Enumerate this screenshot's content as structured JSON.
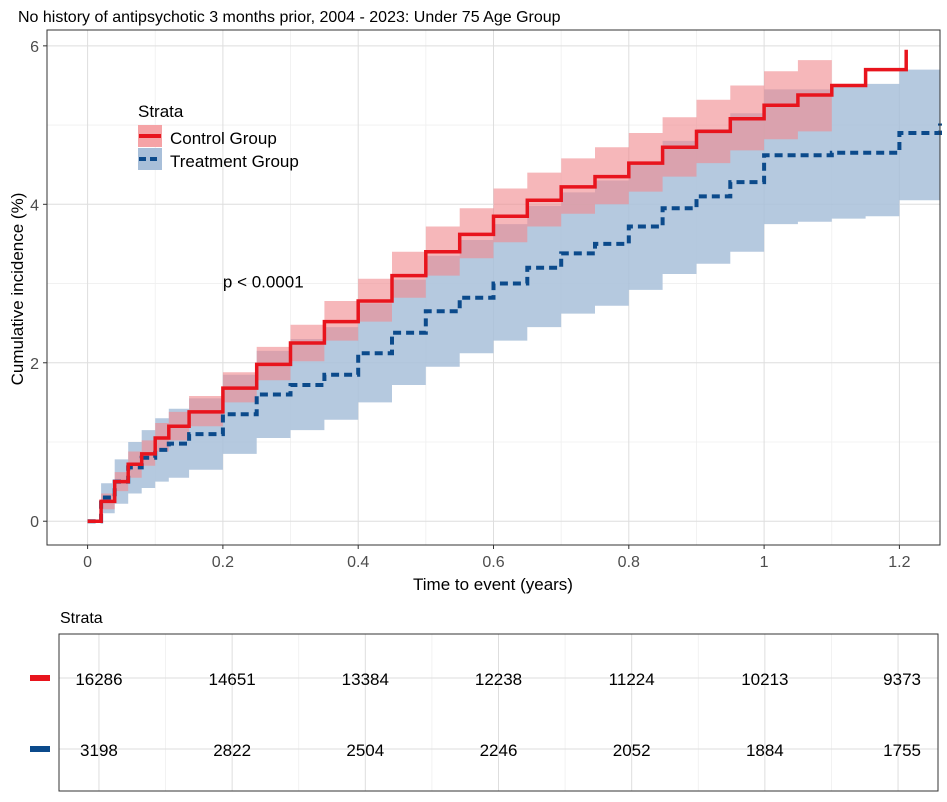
{
  "chart_data": [
    {
      "type": "line",
      "title": "No history of antipsychotic 3 months prior, 2004 - 2023: Under 75 Age Group",
      "xlabel": "Time to event (years)",
      "ylabel": "Cumulative incidence (%)",
      "xlim": [
        -0.06,
        1.26
      ],
      "ylim": [
        -0.3,
        6.2
      ],
      "x_ticks": [
        0,
        0.2,
        0.4,
        0.6,
        0.8,
        1,
        1.2
      ],
      "x_tick_labels": [
        "0",
        "0.2",
        "0.4",
        "0.6",
        "0.8",
        "1",
        "1.2"
      ],
      "y_ticks": [
        0,
        2,
        4,
        6
      ],
      "y_tick_labels": [
        "0",
        "2",
        "4",
        "6"
      ],
      "grid": true,
      "legend": {
        "title": "Strata",
        "placement": "top-left",
        "entries": [
          "Control Group",
          "Treatment Group"
        ]
      },
      "annotation": "p < 0.0001",
      "annotation_position": {
        "x": 0.2,
        "y": 2.95
      },
      "series": [
        {
          "name": "Control Group",
          "color": "#e8141d",
          "band_color": "#f08a8f",
          "line_style": "solid",
          "x": [
            0,
            0.02,
            0.04,
            0.06,
            0.08,
            0.1,
            0.12,
            0.15,
            0.2,
            0.25,
            0.3,
            0.35,
            0.4,
            0.45,
            0.5,
            0.55,
            0.6,
            0.65,
            0.7,
            0.75,
            0.8,
            0.85,
            0.9,
            0.95,
            1.0,
            1.05,
            1.1,
            1.15,
            1.21
          ],
          "y": [
            0,
            0.25,
            0.5,
            0.72,
            0.85,
            1.05,
            1.2,
            1.38,
            1.68,
            1.98,
            2.25,
            2.52,
            2.78,
            3.1,
            3.4,
            3.62,
            3.85,
            4.05,
            4.22,
            4.35,
            4.52,
            4.72,
            4.92,
            5.08,
            5.25,
            5.38,
            5.5,
            5.7,
            5.95
          ],
          "lower": [
            0,
            0.15,
            0.38,
            0.55,
            0.7,
            0.88,
            1.02,
            1.2,
            1.5,
            1.78,
            2.02,
            2.28,
            2.52,
            2.82,
            3.1,
            3.32,
            3.52,
            3.72,
            3.88,
            4.0,
            4.16,
            4.35,
            4.52,
            4.68,
            4.82,
            4.92,
            5.0,
            null,
            null
          ],
          "upper": [
            0,
            0.35,
            0.62,
            0.88,
            1.02,
            1.24,
            1.38,
            1.58,
            1.88,
            2.2,
            2.48,
            2.78,
            3.06,
            3.4,
            3.72,
            3.95,
            4.2,
            4.4,
            4.58,
            4.72,
            4.9,
            5.1,
            5.32,
            5.5,
            5.68,
            5.82,
            5.95,
            null,
            null
          ]
        },
        {
          "name": "Treatment Group",
          "color": "#0b4a8b",
          "band_color": "#a8bfd9",
          "line_style": "dashed",
          "x": [
            0,
            0.02,
            0.04,
            0.06,
            0.08,
            0.1,
            0.12,
            0.15,
            0.2,
            0.25,
            0.3,
            0.35,
            0.4,
            0.45,
            0.5,
            0.55,
            0.6,
            0.65,
            0.7,
            0.75,
            0.8,
            0.85,
            0.9,
            0.95,
            1.0,
            1.05,
            1.1,
            1.15,
            1.2,
            1.26
          ],
          "y": [
            0,
            0.3,
            0.5,
            0.68,
            0.8,
            0.9,
            0.98,
            1.1,
            1.35,
            1.6,
            1.72,
            1.85,
            2.12,
            2.38,
            2.65,
            2.82,
            3.0,
            3.2,
            3.38,
            3.5,
            3.72,
            3.95,
            4.1,
            4.28,
            4.62,
            4.62,
            4.65,
            4.65,
            4.9,
            5.02
          ],
          "lower": [
            0,
            0.1,
            0.22,
            0.35,
            0.42,
            0.5,
            0.55,
            0.65,
            0.85,
            1.05,
            1.15,
            1.28,
            1.5,
            1.72,
            1.95,
            2.12,
            2.28,
            2.45,
            2.62,
            2.72,
            2.92,
            3.12,
            3.25,
            3.4,
            3.75,
            3.78,
            3.82,
            3.85,
            4.05,
            4.12
          ],
          "upper": [
            0,
            0.48,
            0.78,
            1.0,
            1.15,
            1.3,
            1.42,
            1.55,
            1.85,
            2.15,
            2.3,
            2.45,
            2.75,
            3.05,
            3.35,
            3.55,
            3.75,
            3.98,
            4.15,
            4.3,
            4.52,
            4.8,
            4.95,
            5.15,
            5.45,
            5.45,
            5.5,
            5.52,
            5.7,
            5.9
          ]
        }
      ]
    },
    {
      "type": "table",
      "title": "Strata",
      "x": [
        0,
        0.2,
        0.4,
        0.6,
        0.8,
        1,
        1.2
      ],
      "rows": [
        {
          "name": "Control Group",
          "color": "#e8141d",
          "values": [
            "16286",
            "14651",
            "13384",
            "12238",
            "11224",
            "10213",
            "9373"
          ]
        },
        {
          "name": "Treatment Group",
          "color": "#0b4a8b",
          "values": [
            "3198",
            "2822",
            "2504",
            "2246",
            "2052",
            "1884",
            "1755"
          ]
        }
      ]
    }
  ]
}
